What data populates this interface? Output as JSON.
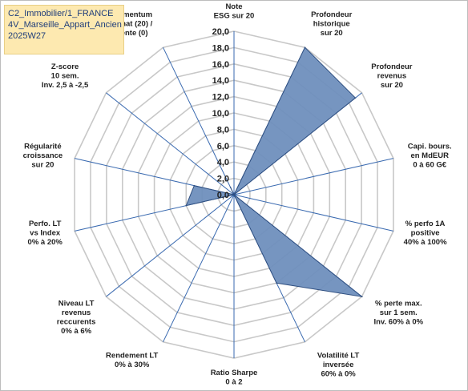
{
  "title": {
    "lines": [
      "C2_Immobilier/1_FRANCE",
      "4V_Marseille_Appart_Ancien",
      "2025W27"
    ]
  },
  "chart_data": {
    "type": "radar",
    "rmin": 0,
    "rmax": 20,
    "tick_step": 2,
    "ticks": [
      "0,0",
      "2,0",
      "4,0",
      "6,0",
      "8,0",
      "10,0",
      "12,0",
      "14,0",
      "16,0",
      "18,0",
      "20,0"
    ],
    "axes": [
      [
        "Note",
        "ESG sur 20"
      ],
      [
        "Profondeur",
        "historique",
        "sur 20"
      ],
      [
        "Profondeur",
        "revenus",
        "sur 20"
      ],
      [
        "Capi. bours.",
        "en MdEUR",
        "0 à 60 G€"
      ],
      [
        "% perfo 1A",
        "positive",
        "40% à 100%"
      ],
      [
        "% perte max.",
        "sur 1 sem.",
        "Inv. 60% à 0%"
      ],
      [
        "Volatilité LT",
        "inversée",
        "60% à 0%"
      ],
      [
        "Ratio Sharpe",
        "0 à 2"
      ],
      [
        "Rendement LT",
        "0% à 30%"
      ],
      [
        "Niveau LT",
        "revenus",
        "reccurents",
        "0% à 6%"
      ],
      [
        "Perfo. LT",
        "vs Index",
        "0% à 20%"
      ],
      [
        "Régularité",
        "croissance",
        "sur 20"
      ],
      [
        "Z-score",
        "10 sem.",
        "Inv. 2,5 à -2,5"
      ],
      [
        "Momentum",
        "Achat (20) /",
        "Vente (0)"
      ]
    ],
    "values": [
      0,
      20,
      19,
      0,
      0,
      20,
      12,
      0,
      0,
      0,
      6,
      5,
      0,
      1
    ],
    "colors": {
      "fill": "#6f8fbd",
      "stroke": "#2f4f80",
      "grid": "#c8c8c8",
      "spoke": "#3a6ab0"
    }
  }
}
